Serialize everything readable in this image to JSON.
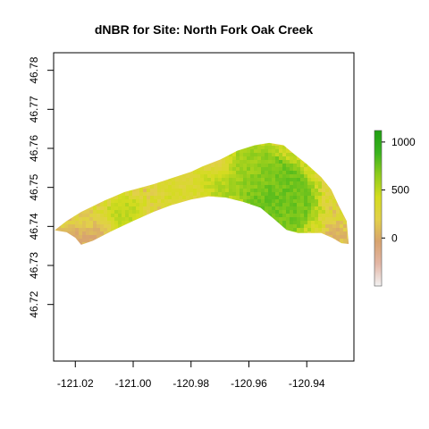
{
  "chart_data": {
    "type": "heatmap",
    "title": "dNBR for Site: North Fork Oak Creek",
    "xlabel": "",
    "ylabel": "",
    "xlim": [
      -121.0275,
      -120.9237
    ],
    "ylim": [
      46.7055,
      46.7845
    ],
    "x_ticks": [
      -121.02,
      -121.0,
      -120.98,
      -120.96,
      -120.94
    ],
    "x_tick_labels": [
      "-121.02",
      "-121.00",
      "-120.98",
      "-120.96",
      "-120.94"
    ],
    "y_ticks": [
      46.72,
      46.73,
      46.74,
      46.75,
      46.76,
      46.77,
      46.78
    ],
    "y_tick_labels": [
      "46.72",
      "46.73",
      "46.74",
      "46.75",
      "46.76",
      "46.77",
      "46.78"
    ],
    "colorbar": {
      "range": [
        -500,
        1120
      ],
      "ticks": [
        0,
        500,
        1000
      ],
      "tick_labels": [
        "0",
        "500",
        "1000"
      ],
      "colors": [
        "#f2f2f2",
        "#e3b6a6",
        "#d8a36f",
        "#e2d04a",
        "#d4dc1f",
        "#8fcc1c",
        "#39b31e",
        "#1f9e12"
      ]
    },
    "grid": false,
    "legend": "right",
    "site_outline": {
      "upper_lon": [
        -121.027,
        -121.023,
        -121.018,
        -121.01,
        -121.003,
        -120.999,
        -120.993,
        -120.987,
        -120.98,
        -120.976,
        -120.97,
        -120.964,
        -120.958,
        -120.953,
        -120.948,
        -120.944,
        -120.94,
        -120.935,
        -120.9315,
        -120.929,
        -120.9262,
        -120.9255
      ],
      "upper_lat": [
        46.7391,
        46.7414,
        46.7437,
        46.7466,
        46.7488,
        46.7496,
        46.7508,
        46.7523,
        46.754,
        46.7554,
        46.7571,
        46.7594,
        46.7608,
        46.7614,
        46.7608,
        46.7583,
        46.756,
        46.7526,
        46.7494,
        46.7454,
        46.7414,
        46.7355
      ],
      "lower_lon": [
        -121.027,
        -121.023,
        -121.02,
        -121.018,
        -121.014,
        -121.008,
        -121.0,
        -120.993,
        -120.987,
        -120.98,
        -120.974,
        -120.968,
        -120.962,
        -120.956,
        -120.951,
        -120.947,
        -120.943,
        -120.939,
        -120.935,
        -120.931,
        -120.928,
        -120.9255
      ],
      "lower_lat": [
        46.739,
        46.7385,
        46.7371,
        46.7353,
        46.7363,
        46.7386,
        46.7414,
        46.7437,
        46.7454,
        46.7469,
        46.7477,
        46.7474,
        46.7463,
        46.7448,
        46.7417,
        46.7391,
        46.7383,
        46.7383,
        46.7383,
        46.737,
        46.7357,
        46.7355
      ]
    },
    "high_severity_patches": [
      {
        "lon": -120.952,
        "lat": 46.75,
        "value": 1100,
        "size": 0.0105
      },
      {
        "lon": -120.948,
        "lat": 46.748,
        "value": 1050,
        "size": 0.0085
      },
      {
        "lon": -120.945,
        "lat": 46.745,
        "value": 950,
        "size": 0.009
      },
      {
        "lon": -120.962,
        "lat": 46.754,
        "value": 800,
        "size": 0.007
      },
      {
        "lon": -120.958,
        "lat": 46.757,
        "value": 750,
        "size": 0.006
      },
      {
        "lon": -120.95,
        "lat": 46.741,
        "value": 1000,
        "size": 0.005
      },
      {
        "lon": -120.969,
        "lat": 46.75,
        "value": 700,
        "size": 0.0055
      },
      {
        "lon": -121.006,
        "lat": 46.742,
        "value": 700,
        "size": 0.006
      },
      {
        "lon": -121.0,
        "lat": 46.744,
        "value": 600,
        "size": 0.005
      },
      {
        "lon": -120.986,
        "lat": 46.749,
        "value": 500,
        "size": 0.006
      },
      {
        "lon": -120.978,
        "lat": 46.752,
        "value": 550,
        "size": 0.005
      },
      {
        "lon": -121.016,
        "lat": 46.74,
        "value": 450,
        "size": 0.004
      },
      {
        "lon": -120.956,
        "lat": 46.753,
        "value": 900,
        "size": 0.0055
      }
    ],
    "low_patches": [
      {
        "lon": -121.016,
        "lat": 46.738,
        "value": -350,
        "size": 0.0045
      },
      {
        "lon": -121.011,
        "lat": 46.7395,
        "value": -200,
        "size": 0.004
      },
      {
        "lon": -120.93,
        "lat": 46.7385,
        "value": -100,
        "size": 0.0035
      },
      {
        "lon": -120.97,
        "lat": 46.756,
        "value": 50,
        "size": 0.004
      },
      {
        "lon": -120.982,
        "lat": 46.752,
        "value": 100,
        "size": 0.004
      },
      {
        "lon": -121.022,
        "lat": 46.7375,
        "value": -150,
        "size": 0.003
      }
    ]
  }
}
